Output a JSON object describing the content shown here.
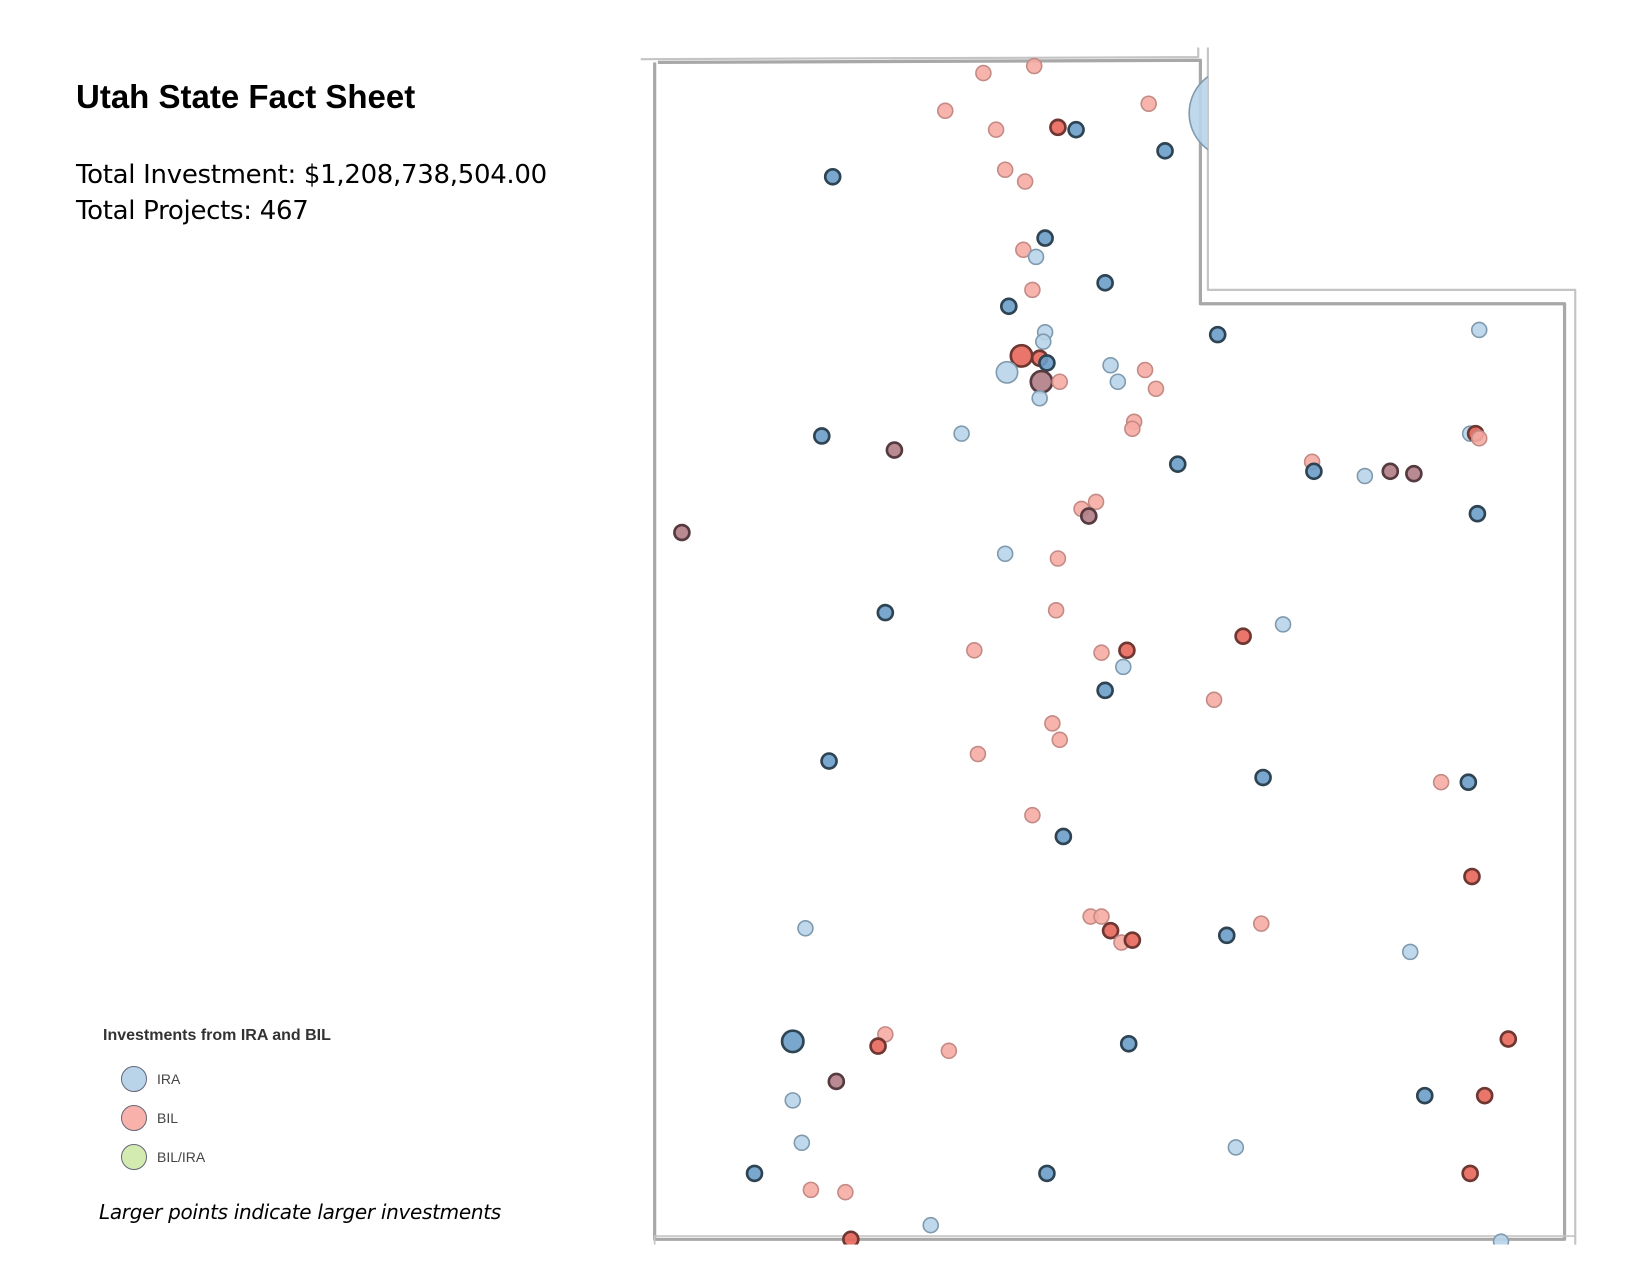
{
  "header": {
    "title": "Utah State Fact Sheet",
    "total_investment": "Total Investment: $1,208,738,504.00",
    "total_projects": "Total Projects: 467"
  },
  "legend": {
    "title": "Investments from IRA and BIL",
    "items": [
      {
        "label": "IRA",
        "color": "#b9d4e9"
      },
      {
        "label": "BIL",
        "color": "#f8b2ab"
      },
      {
        "label": "BIL/IRA",
        "color": "#d3ebb0"
      }
    ],
    "note": "Larger points indicate larger investments"
  },
  "colors": {
    "IRA": "#b9d4e9",
    "IRA_stacked": "#6a9dc9",
    "BIL": "#f6aca4",
    "BIL_stacked": "#e8665a",
    "MIX": "#b17d86",
    "border": "#a9a9a9"
  },
  "map": {
    "region": "Utah",
    "points_format": [
      "lon",
      "lat",
      "type",
      "stacked",
      "size"
    ],
    "points": [
      [
        -112.24,
        41.95,
        "BIL",
        0,
        1
      ],
      [
        -111.96,
        41.98,
        "BIL",
        0,
        1
      ],
      [
        -112.45,
        41.79,
        "BIL",
        0,
        1
      ],
      [
        -111.33,
        41.82,
        "BIL",
        0,
        1
      ],
      [
        -112.17,
        41.71,
        "BIL",
        0,
        1
      ],
      [
        -111.83,
        41.72,
        "BIL",
        1,
        1
      ],
      [
        -111.73,
        41.71,
        "IRA",
        1,
        1
      ],
      [
        -111.24,
        41.62,
        "IRA",
        1,
        1
      ],
      [
        -113.07,
        41.51,
        "IRA",
        1,
        1
      ],
      [
        -112.12,
        41.54,
        "BIL",
        0,
        1
      ],
      [
        -112.01,
        41.49,
        "BIL",
        0,
        1
      ],
      [
        -111.9,
        41.25,
        "IRA",
        1,
        1
      ],
      [
        -112.02,
        41.2,
        "BIL",
        0,
        1
      ],
      [
        -111.95,
        41.17,
        "IRA",
        0,
        1
      ],
      [
        -111.97,
        41.03,
        "BIL",
        0,
        1
      ],
      [
        -111.57,
        41.06,
        "IRA",
        1,
        1
      ],
      [
        -112.1,
        40.96,
        "IRA",
        1,
        1
      ],
      [
        -110.95,
        40.84,
        "IRA",
        1,
        1
      ],
      [
        -109.51,
        40.86,
        "IRA",
        0,
        1
      ],
      [
        -111.9,
        40.85,
        "IRA",
        0,
        1
      ],
      [
        -111.91,
        40.81,
        "IRA",
        0,
        1
      ],
      [
        -112.03,
        40.75,
        "BIL",
        1,
        2
      ],
      [
        -111.93,
        40.74,
        "BIL",
        1,
        1
      ],
      [
        -111.89,
        40.72,
        "IRA",
        1,
        1
      ],
      [
        -112.11,
        40.68,
        "IRA",
        0,
        2
      ],
      [
        -111.54,
        40.71,
        "IRA",
        0,
        1
      ],
      [
        -111.35,
        40.69,
        "BIL",
        0,
        1
      ],
      [
        -111.5,
        40.64,
        "IRA",
        0,
        1
      ],
      [
        -111.92,
        40.64,
        "MIX",
        1,
        2
      ],
      [
        -111.82,
        40.64,
        "BIL",
        0,
        1
      ],
      [
        -111.29,
        40.61,
        "BIL",
        0,
        1
      ],
      [
        -111.93,
        40.57,
        "IRA",
        0,
        1
      ],
      [
        -111.41,
        40.47,
        "BIL",
        0,
        1
      ],
      [
        -111.42,
        40.44,
        "BIL",
        0,
        1
      ],
      [
        -113.13,
        40.41,
        "IRA",
        1,
        1
      ],
      [
        -112.36,
        40.42,
        "IRA",
        0,
        1
      ],
      [
        -112.73,
        40.35,
        "MIX",
        1,
        1
      ],
      [
        -109.56,
        40.42,
        "IRA",
        0,
        1
      ],
      [
        -109.53,
        40.42,
        "BIL",
        1,
        1
      ],
      [
        -109.51,
        40.4,
        "BIL",
        0,
        1
      ],
      [
        -111.17,
        40.29,
        "IRA",
        1,
        1
      ],
      [
        -110.43,
        40.3,
        "BIL",
        0,
        1
      ],
      [
        -110.42,
        40.26,
        "IRA",
        1,
        1
      ],
      [
        -110.14,
        40.24,
        "IRA",
        0,
        1
      ],
      [
        -110.0,
        40.26,
        "MIX",
        0,
        1
      ],
      [
        -109.87,
        40.25,
        "MIX",
        0,
        1
      ],
      [
        -113.9,
        40.0,
        "MIX",
        0,
        1
      ],
      [
        -111.7,
        40.1,
        "BIL",
        0,
        1
      ],
      [
        -111.62,
        40.13,
        "BIL",
        0,
        1
      ],
      [
        -111.66,
        40.07,
        "MIX",
        1,
        1
      ],
      [
        -109.52,
        40.08,
        "IRA",
        1,
        1
      ],
      [
        -112.12,
        39.91,
        "IRA",
        0,
        1
      ],
      [
        -111.83,
        39.89,
        "BIL",
        0,
        1
      ],
      [
        -112.78,
        39.66,
        "IRA",
        1,
        1
      ],
      [
        -111.84,
        39.67,
        "BIL",
        0,
        1
      ],
      [
        -110.81,
        39.56,
        "BIL",
        1,
        1
      ],
      [
        -110.59,
        39.61,
        "IRA",
        0,
        1
      ],
      [
        -112.29,
        39.5,
        "BIL",
        0,
        1
      ],
      [
        -111.59,
        39.49,
        "BIL",
        0,
        1
      ],
      [
        -111.45,
        39.5,
        "BIL",
        1,
        1
      ],
      [
        -111.47,
        39.43,
        "IRA",
        0,
        1
      ],
      [
        -111.57,
        39.33,
        "IRA",
        1,
        1
      ],
      [
        -110.97,
        39.29,
        "BIL",
        0,
        1
      ],
      [
        -111.86,
        39.19,
        "BIL",
        0,
        1
      ],
      [
        -111.82,
        39.12,
        "BIL",
        0,
        1
      ],
      [
        -113.09,
        39.03,
        "IRA",
        1,
        1
      ],
      [
        -112.27,
        39.06,
        "BIL",
        0,
        1
      ],
      [
        -110.7,
        38.96,
        "IRA",
        1,
        1
      ],
      [
        -109.72,
        38.94,
        "BIL",
        0,
        1
      ],
      [
        -109.57,
        38.94,
        "IRA",
        1,
        1
      ],
      [
        -111.97,
        38.8,
        "BIL",
        0,
        1
      ],
      [
        -111.8,
        38.71,
        "IRA",
        1,
        1
      ],
      [
        -109.55,
        38.54,
        "BIL",
        1,
        1
      ],
      [
        -113.22,
        38.32,
        "IRA",
        0,
        1
      ],
      [
        -111.65,
        38.37,
        "BIL",
        0,
        1
      ],
      [
        -111.59,
        38.37,
        "BIL",
        0,
        1
      ],
      [
        -111.54,
        38.31,
        "BIL",
        1,
        1
      ],
      [
        -111.48,
        38.26,
        "BIL",
        0,
        1
      ],
      [
        -111.42,
        38.27,
        "BIL",
        1,
        1
      ],
      [
        -110.9,
        38.29,
        "IRA",
        1,
        1
      ],
      [
        -110.71,
        38.34,
        "BIL",
        0,
        1
      ],
      [
        -109.89,
        38.22,
        "IRA",
        0,
        1
      ],
      [
        -113.29,
        37.84,
        "IRA",
        1,
        2
      ],
      [
        -112.78,
        37.87,
        "BIL",
        0,
        1
      ],
      [
        -112.82,
        37.82,
        "BIL",
        1,
        1
      ],
      [
        -112.43,
        37.8,
        "BIL",
        0,
        1
      ],
      [
        -111.44,
        37.83,
        "IRA",
        1,
        1
      ],
      [
        -109.35,
        37.85,
        "BIL",
        1,
        1
      ],
      [
        -113.05,
        37.67,
        "MIX",
        1,
        1
      ],
      [
        -113.29,
        37.59,
        "IRA",
        0,
        1
      ],
      [
        -109.81,
        37.61,
        "IRA",
        1,
        1
      ],
      [
        -109.48,
        37.61,
        "BIL",
        1,
        1
      ],
      [
        -113.24,
        37.41,
        "IRA",
        0,
        1
      ],
      [
        -110.85,
        37.39,
        "IRA",
        0,
        1
      ],
      [
        -113.5,
        37.28,
        "IRA",
        1,
        1
      ],
      [
        -111.89,
        37.28,
        "IRA",
        1,
        1
      ],
      [
        -109.56,
        37.28,
        "BIL",
        1,
        1
      ],
      [
        -113.19,
        37.21,
        "BIL",
        0,
        1
      ],
      [
        -113.0,
        37.2,
        "BIL",
        0,
        1
      ],
      [
        -112.53,
        37.06,
        "IRA",
        0,
        1
      ],
      [
        -112.97,
        37.0,
        "BIL",
        1,
        1
      ],
      [
        -109.39,
        36.99,
        "IRA",
        0,
        1
      ],
      [
        -110.86,
        41.78,
        "IRA",
        0,
        3
      ]
    ]
  }
}
